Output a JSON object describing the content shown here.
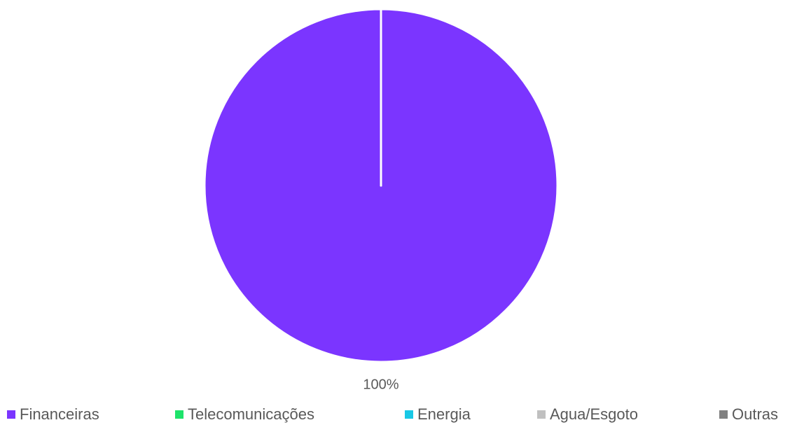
{
  "chart_data": {
    "type": "pie",
    "categories": [
      "Financeiras",
      "Telecomunicações",
      "Energia",
      "Agua/Esgoto",
      "Outras"
    ],
    "values": [
      100,
      0,
      0,
      0,
      0
    ],
    "value_labels": [
      "100%",
      null,
      null,
      null,
      null
    ],
    "colors": [
      "#7b35ff",
      "#1ee36b",
      "#18c8e6",
      "#c0c0c0",
      "#808080"
    ],
    "legend": "bottom"
  }
}
